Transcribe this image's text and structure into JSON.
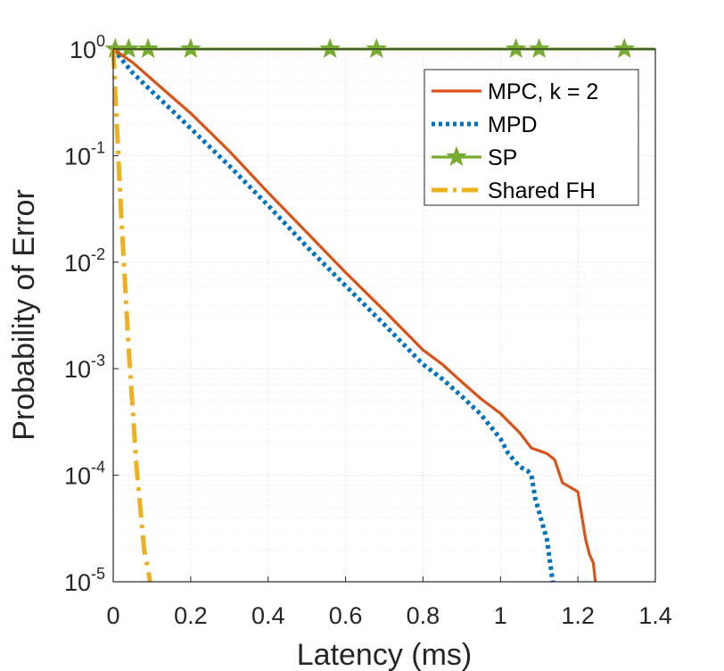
{
  "colors": {
    "mpc": "#D95319",
    "mpd": "#0072BD",
    "sp": "#77AC30",
    "shared_fh": "#EDB120",
    "grid": "#d9d9d9",
    "axis": "#262626"
  },
  "chart_data": {
    "type": "line",
    "yscale": "log",
    "xlabel": "Latency (ms)",
    "ylabel": "Probability of Error",
    "xlim": [
      0,
      1.4
    ],
    "ylim": [
      1e-05,
      1
    ],
    "grid": true,
    "legend_position": "top-right",
    "x_ticks": [
      "0",
      "0.2",
      "0.4",
      "0.6",
      "0.8",
      "1",
      "1.2",
      "1.4"
    ],
    "y_ticks": [
      {
        "base": "10",
        "exp": "0"
      },
      {
        "base": "10",
        "exp": "-1"
      },
      {
        "base": "10",
        "exp": "-2"
      },
      {
        "base": "10",
        "exp": "-3"
      },
      {
        "base": "10",
        "exp": "-4"
      },
      {
        "base": "10",
        "exp": "-5"
      }
    ],
    "series": [
      {
        "name": "MPC, k = 2",
        "style": "solid",
        "x": [
          0,
          0.05,
          0.1,
          0.15,
          0.2,
          0.3,
          0.4,
          0.5,
          0.6,
          0.7,
          0.8,
          0.85,
          0.9,
          0.95,
          1.0,
          1.05,
          1.08,
          1.1,
          1.12,
          1.14,
          1.16,
          1.2,
          1.22,
          1.23,
          1.24,
          1.245
        ],
        "y": [
          1,
          0.75,
          0.52,
          0.36,
          0.25,
          0.11,
          0.045,
          0.019,
          0.008,
          0.0035,
          0.0015,
          0.0011,
          0.00075,
          0.00052,
          0.00038,
          0.00025,
          0.00018,
          0.00017,
          0.00016,
          0.00014,
          8.5e-05,
          7e-05,
          2.5e-05,
          1.8e-05,
          1.5e-05,
          1e-05
        ]
      },
      {
        "name": "MPD",
        "style": "dotted",
        "x": [
          0,
          0.05,
          0.1,
          0.15,
          0.2,
          0.3,
          0.4,
          0.5,
          0.6,
          0.7,
          0.8,
          0.85,
          0.9,
          0.95,
          1.0,
          1.02,
          1.05,
          1.07,
          1.08,
          1.09,
          1.1,
          1.12,
          1.135
        ],
        "y": [
          1,
          0.6,
          0.4,
          0.27,
          0.18,
          0.08,
          0.034,
          0.014,
          0.006,
          0.0026,
          0.0011,
          0.0008,
          0.00055,
          0.00037,
          0.00022,
          0.00016,
          0.00012,
          0.00011,
          0.0001,
          6e-05,
          4.5e-05,
          2.5e-05,
          1e-05
        ]
      },
      {
        "name": "SP",
        "style": "solid-star",
        "x": [
          0,
          0.04,
          0.09,
          0.2,
          0.56,
          0.68,
          1.04,
          1.1,
          1.32,
          1.4
        ],
        "y": [
          1,
          1,
          1,
          1,
          1,
          1,
          1,
          1,
          1,
          1
        ],
        "marker_x": [
          0.005,
          0.04,
          0.09,
          0.2,
          0.56,
          0.68,
          1.04,
          1.1,
          1.32
        ]
      },
      {
        "name": "Shared FH",
        "style": "dashdot",
        "x": [
          0,
          0.02,
          0.04,
          0.06,
          0.08,
          0.09,
          0.095
        ],
        "y": [
          1,
          0.03,
          0.0015,
          0.00012,
          2e-05,
          1.3e-05,
          1e-05
        ]
      }
    ]
  }
}
